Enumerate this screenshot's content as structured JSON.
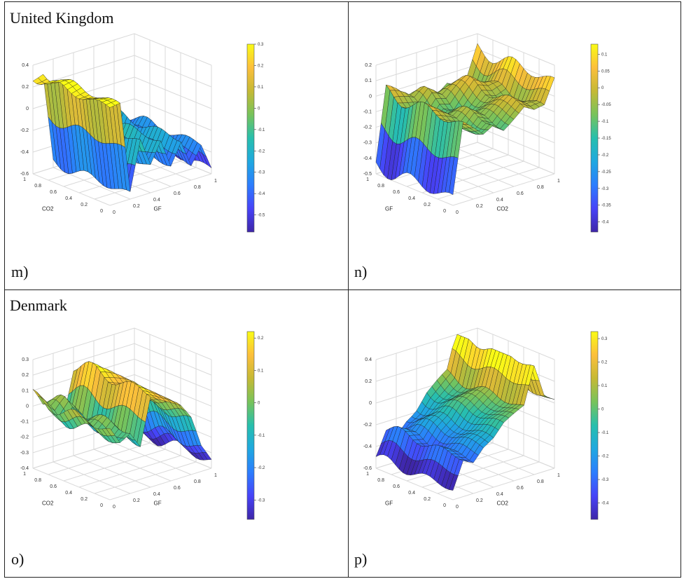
{
  "chart_data": [
    {
      "type": "surface3d",
      "panel": "m)",
      "country": "United Kingdom",
      "xlabel": "GF",
      "ylabel": "CO2",
      "x_ticks": [
        "0",
        "0.2",
        "0.4",
        "0.6",
        "0.8",
        "1"
      ],
      "y_ticks": [
        "0",
        "0.2",
        "0.4",
        "0.6",
        "0.8",
        "1"
      ],
      "z_ticks": [
        "-0.6",
        "-0.4",
        "-0.2",
        "0",
        "0.2",
        "0.4"
      ],
      "zlim": [
        -0.6,
        0.4
      ],
      "colorbar_ticks": [
        "0.3",
        "0.2",
        "0.1",
        "0",
        "-0.1",
        "-0.2",
        "-0.3",
        "-0.4",
        "-0.5"
      ],
      "clim": [
        -0.58,
        0.3
      ],
      "profile_x": [
        0.0,
        0.1,
        0.2,
        0.3,
        0.4,
        0.5,
        0.6,
        0.7,
        0.8,
        0.9,
        1.0
      ],
      "profile_z": [
        0.3,
        0.3,
        -0.55,
        -0.1,
        -0.35,
        -0.15,
        -0.4,
        -0.2,
        -0.45,
        -0.3,
        -0.55
      ]
    },
    {
      "type": "surface3d",
      "panel": "n)",
      "country": "",
      "xlabel": "CO2",
      "ylabel": "GF",
      "x_ticks": [
        "0",
        "0.2",
        "0.4",
        "0.6",
        "0.8",
        "1"
      ],
      "y_ticks": [
        "0",
        "0.2",
        "0.4",
        "0.6",
        "0.8",
        "1"
      ],
      "z_ticks": [
        "-0.5",
        "-0.4",
        "-0.3",
        "-0.2",
        "-0.1",
        "0",
        "0.1",
        "0.2"
      ],
      "zlim": [
        -0.5,
        0.2
      ],
      "colorbar_ticks": [
        "0.1",
        "0.05",
        "0",
        "-0.05",
        "-0.1",
        "-0.15",
        "-0.2",
        "-0.25",
        "-0.3",
        "-0.35",
        "-0.4"
      ],
      "clim": [
        -0.43,
        0.13
      ],
      "profile_x": [
        0.0,
        0.1,
        0.2,
        0.3,
        0.4,
        0.5,
        0.6,
        0.7,
        0.8,
        0.9,
        1.0
      ],
      "profile_z": [
        -0.45,
        0.0,
        -0.05,
        -0.1,
        -0.05,
        -0.1,
        -0.05,
        0.0,
        -0.05,
        -0.05,
        0.1
      ]
    },
    {
      "type": "surface3d",
      "panel": "o)",
      "country": "Denmark",
      "xlabel": "GF",
      "ylabel": "CO2",
      "x_ticks": [
        "0",
        "0.2",
        "0.4",
        "0.6",
        "0.8",
        "1"
      ],
      "y_ticks": [
        "0",
        "0.2",
        "0.4",
        "0.6",
        "0.8",
        "1"
      ],
      "z_ticks": [
        "-0.4",
        "-0.3",
        "-0.2",
        "-0.1",
        "0",
        "0.1",
        "0.2",
        "0.3"
      ],
      "zlim": [
        -0.4,
        0.3
      ],
      "colorbar_ticks": [
        "0.2",
        "0.1",
        "0",
        "-0.1",
        "-0.2",
        "-0.3"
      ],
      "clim": [
        -0.36,
        0.22
      ],
      "profile_x": [
        0.0,
        0.1,
        0.2,
        0.3,
        0.4,
        0.5,
        0.6,
        0.7,
        0.8,
        0.9,
        1.0
      ],
      "profile_z": [
        0.05,
        -0.05,
        0.0,
        -0.1,
        0.2,
        0.15,
        0.1,
        0.05,
        -0.05,
        -0.25,
        -0.35
      ]
    },
    {
      "type": "surface3d",
      "panel": "p)",
      "country": "",
      "xlabel": "CO2",
      "ylabel": "GF",
      "x_ticks": [
        "0",
        "0.2",
        "0.4",
        "0.6",
        "0.8",
        "1"
      ],
      "y_ticks": [
        "0",
        "0.2",
        "0.4",
        "0.6",
        "0.8",
        "1"
      ],
      "z_ticks": [
        "-0.6",
        "-0.4",
        "-0.2",
        "0",
        "0.2",
        "0.4"
      ],
      "zlim": [
        -0.6,
        0.4
      ],
      "colorbar_ticks": [
        "0.3",
        "0.2",
        "0.1",
        "0",
        "-0.1",
        "-0.2",
        "-0.3",
        "-0.4"
      ],
      "clim": [
        -0.47,
        0.33
      ],
      "profile_x": [
        0.0,
        0.1,
        0.2,
        0.3,
        0.4,
        0.5,
        0.6,
        0.7,
        0.8,
        0.9,
        1.0
      ],
      "profile_z": [
        -0.5,
        -0.25,
        -0.3,
        -0.2,
        -0.15,
        -0.05,
        0.0,
        0.05,
        0.4,
        0.1,
        0.05
      ]
    }
  ],
  "colormap": [
    "#3e26a8",
    "#4743f8",
    "#2c7dfe",
    "#1fa8e0",
    "#27bfad",
    "#77c35b",
    "#c5b935",
    "#fcbf3b",
    "#f9fb15"
  ]
}
